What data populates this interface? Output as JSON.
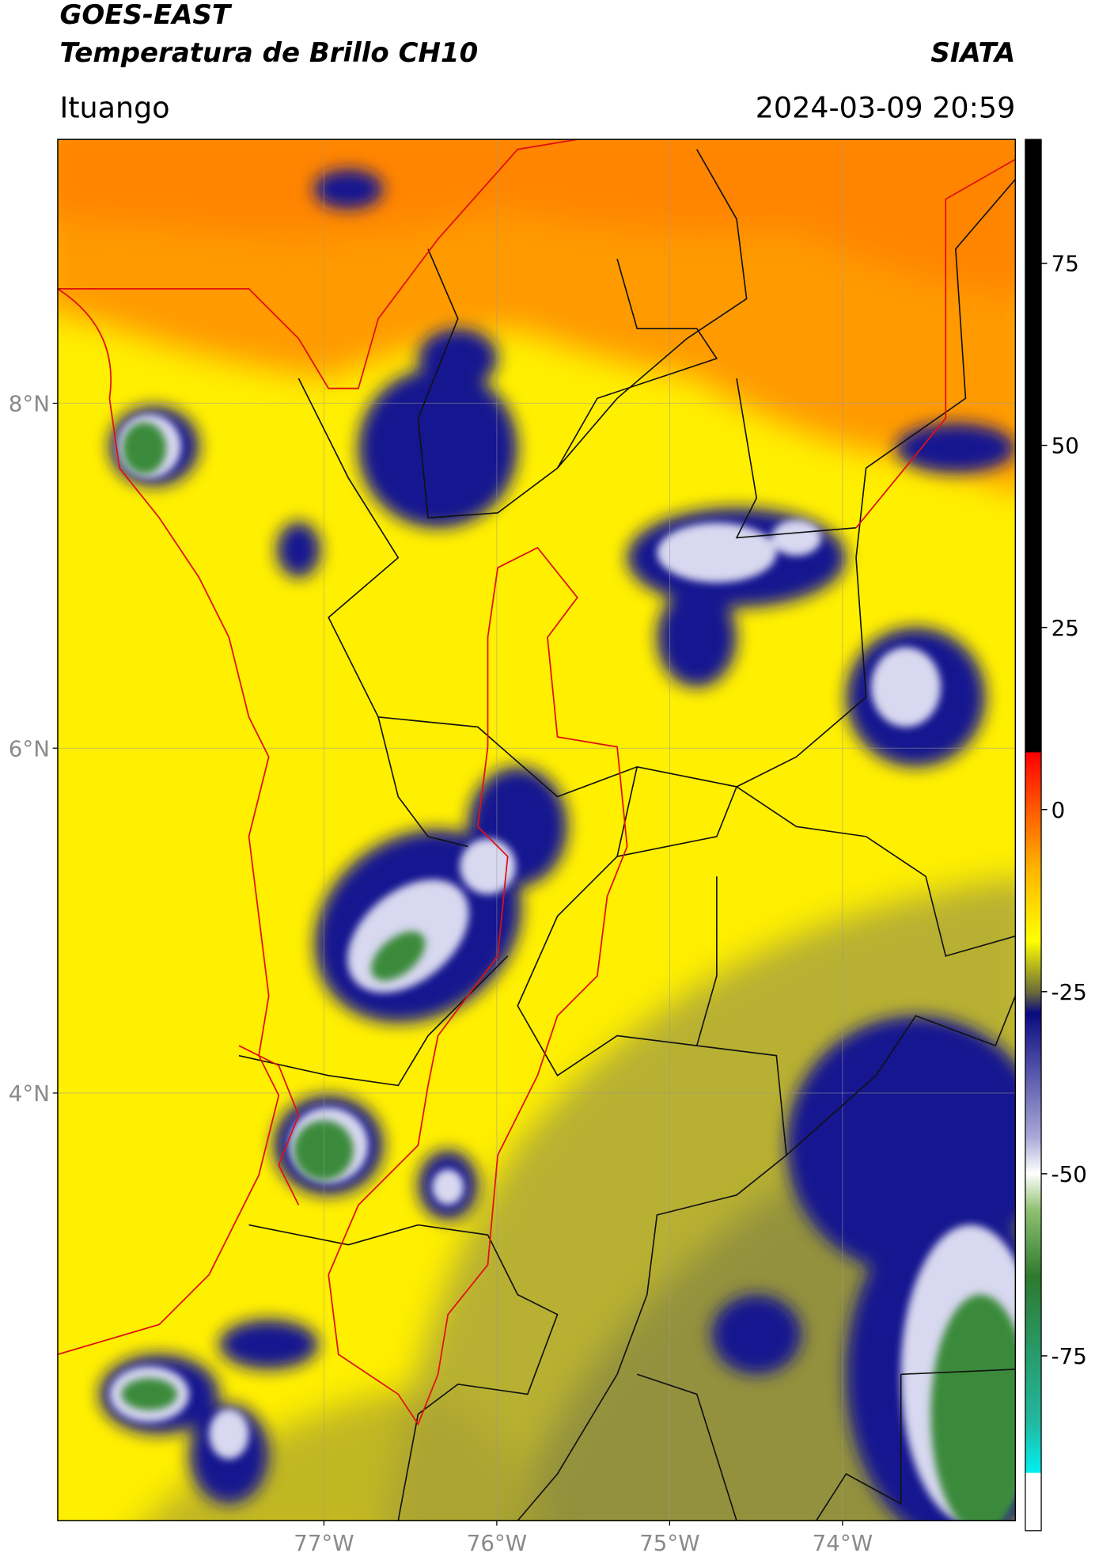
{
  "header": {
    "satellite": "GOES-EAST",
    "product": "Temperatura de Brillo CH10",
    "source": "SIATA",
    "region": "Ituango",
    "timestamp": "2024-03-09 20:59"
  },
  "map": {
    "lat_range": [
      1.52,
      9.53
    ],
    "lon_range": [
      -78.54,
      -73.0
    ],
    "lat_ticks": [
      {
        "value": 8,
        "label": "8°N"
      },
      {
        "value": 6,
        "label": "6°N"
      },
      {
        "value": 4,
        "label": "4°N"
      }
    ],
    "lon_ticks": [
      {
        "value": -77,
        "label": "77°W"
      },
      {
        "value": -76,
        "label": "76°W"
      },
      {
        "value": -75,
        "label": "75°W"
      },
      {
        "value": -74,
        "label": "74°W"
      }
    ]
  },
  "colorbar": {
    "range": [
      -99,
      92
    ],
    "ticks": [
      75,
      50,
      25,
      0,
      -25,
      -50,
      -75
    ]
  }
}
